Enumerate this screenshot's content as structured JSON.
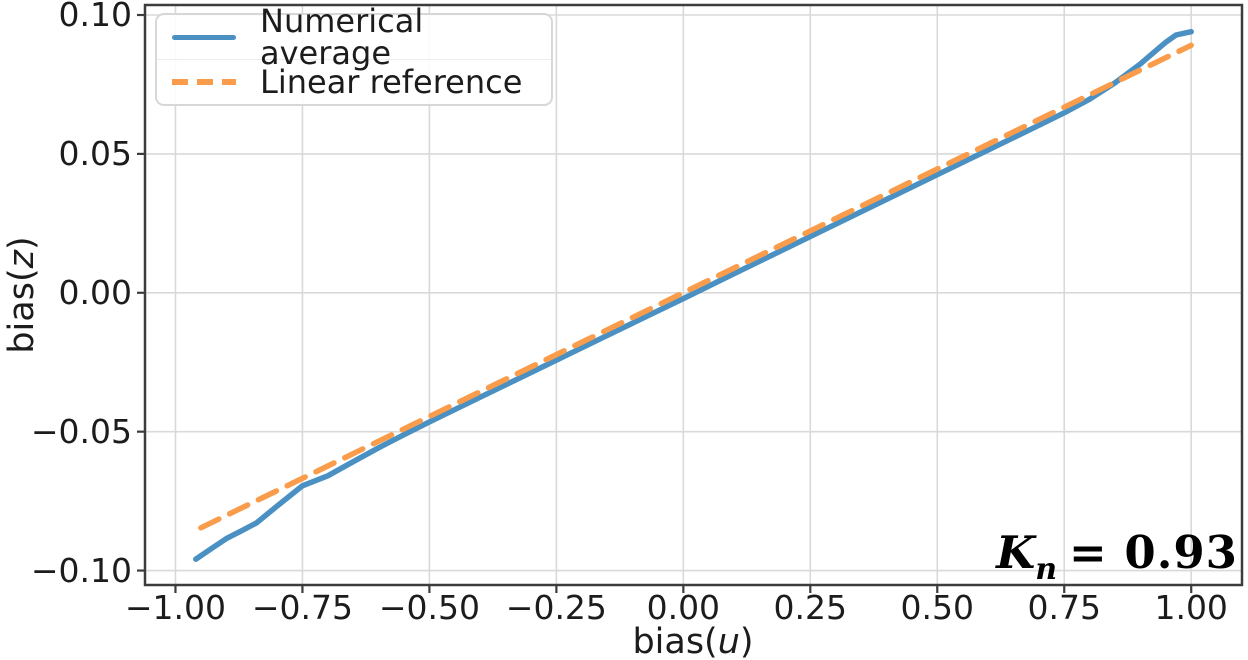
{
  "figure": {
    "xlabel_prefix": "bias(",
    "xlabel_var": "u",
    "xlabel_suffix": ")",
    "ylabel_prefix": "bias(",
    "ylabel_var": "z",
    "ylabel_suffix": ")",
    "annotation": {
      "symbol": "K",
      "subscript": "n",
      "value_text": "= 0.93"
    }
  },
  "chart_data": {
    "type": "line",
    "title": "",
    "xlabel": "bias(u)",
    "ylabel": "bias(z)",
    "xlim": [
      -1.06,
      1.1
    ],
    "ylim": [
      -0.1052,
      0.1036
    ],
    "grid": true,
    "legend_position": "upper left",
    "annotation": "K_n = 0.93",
    "x_ticks": [
      -1.0,
      -0.75,
      -0.5,
      -0.25,
      0.0,
      0.25,
      0.5,
      0.75,
      1.0
    ],
    "x_tick_labels": [
      "−1.00",
      "−0.75",
      "−0.50",
      "−0.25",
      "0.00",
      "0.25",
      "0.50",
      "0.75",
      "1.00"
    ],
    "y_ticks": [
      0.1,
      0.05,
      0.0,
      -0.05,
      -0.1
    ],
    "y_tick_labels": [
      "0.10",
      "0.05",
      "0.00",
      "−0.05",
      "−0.10"
    ],
    "series": [
      {
        "name": "Numerical average",
        "style": "solid",
        "color": "#4a90c3",
        "points": [
          [
            -0.96,
            -0.0959
          ],
          [
            -0.93,
            -0.0922
          ],
          [
            -0.9,
            -0.0885
          ],
          [
            -0.87,
            -0.0857
          ],
          [
            -0.84,
            -0.0828
          ],
          [
            -0.8,
            -0.0768
          ],
          [
            -0.75,
            -0.0695
          ],
          [
            -0.7,
            -0.0659
          ],
          [
            -0.65,
            -0.0608
          ],
          [
            -0.6,
            -0.0558
          ],
          [
            -0.55,
            -0.0511
          ],
          [
            -0.5,
            -0.0465
          ],
          [
            -0.4,
            -0.0376
          ],
          [
            -0.3,
            -0.0287
          ],
          [
            -0.2,
            -0.0198
          ],
          [
            -0.1,
            -0.0109
          ],
          [
            0.0,
            -0.0021
          ],
          [
            0.1,
            0.0069
          ],
          [
            0.2,
            0.0158
          ],
          [
            0.3,
            0.0247
          ],
          [
            0.4,
            0.0336
          ],
          [
            0.5,
            0.0425
          ],
          [
            0.6,
            0.0514
          ],
          [
            0.7,
            0.0603
          ],
          [
            0.75,
            0.0648
          ],
          [
            0.8,
            0.0697
          ],
          [
            0.85,
            0.0756
          ],
          [
            0.9,
            0.0824
          ],
          [
            0.95,
            0.0902
          ],
          [
            0.97,
            0.0928
          ],
          [
            1.0,
            0.094
          ]
        ]
      },
      {
        "name": "Linear reference",
        "style": "dashed",
        "color": "#f99c4b",
        "points": [
          [
            -0.95,
            -0.0846
          ],
          [
            1.0,
            0.0891
          ]
        ]
      }
    ]
  }
}
